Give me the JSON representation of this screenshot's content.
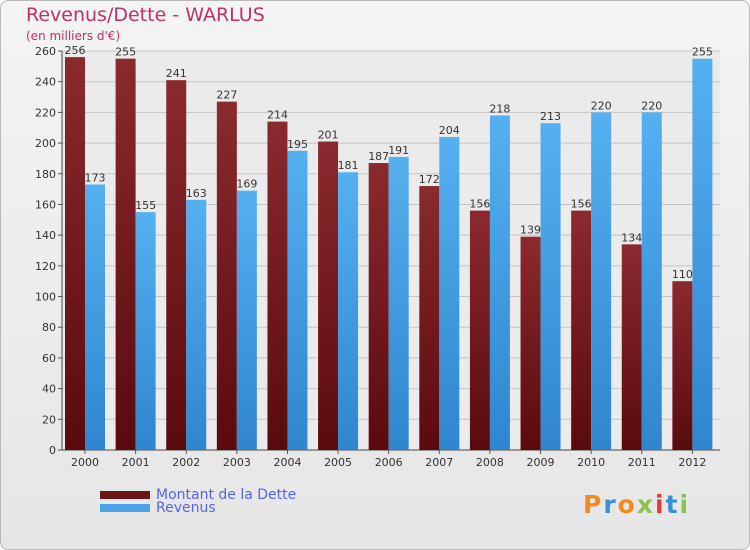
{
  "chart_data": {
    "type": "bar",
    "title": "Revenus/Dette - WARLUS",
    "unit_label": "(en milliers d'€)",
    "categories": [
      "2000",
      "2001",
      "2002",
      "2003",
      "2004",
      "2005",
      "2006",
      "2007",
      "2008",
      "2009",
      "2010",
      "2011",
      "2012"
    ],
    "series": [
      {
        "name": "Montant de la Dette",
        "color": "#7a1f24",
        "values": [
          256,
          255,
          241,
          227,
          214,
          201,
          187,
          172,
          156,
          139,
          156,
          134,
          110
        ]
      },
      {
        "name": "Revenus",
        "color": "#4aa3e8",
        "values": [
          173,
          155,
          163,
          169,
          195,
          181,
          191,
          204,
          218,
          213,
          220,
          220,
          255
        ]
      }
    ],
    "ylim": [
      0,
      260
    ],
    "yticks": [
      0,
      20,
      40,
      60,
      80,
      100,
      120,
      140,
      160,
      180,
      200,
      220,
      240,
      260
    ],
    "grid": true,
    "legend_position": "bottom-left"
  },
  "logo": {
    "text": "Proxiti",
    "colors": [
      "#f28a1e",
      "#3b8fd8",
      "#f28a1e",
      "#8bc34a",
      "#e53935",
      "#3b8fd8",
      "#8bc34a"
    ]
  }
}
